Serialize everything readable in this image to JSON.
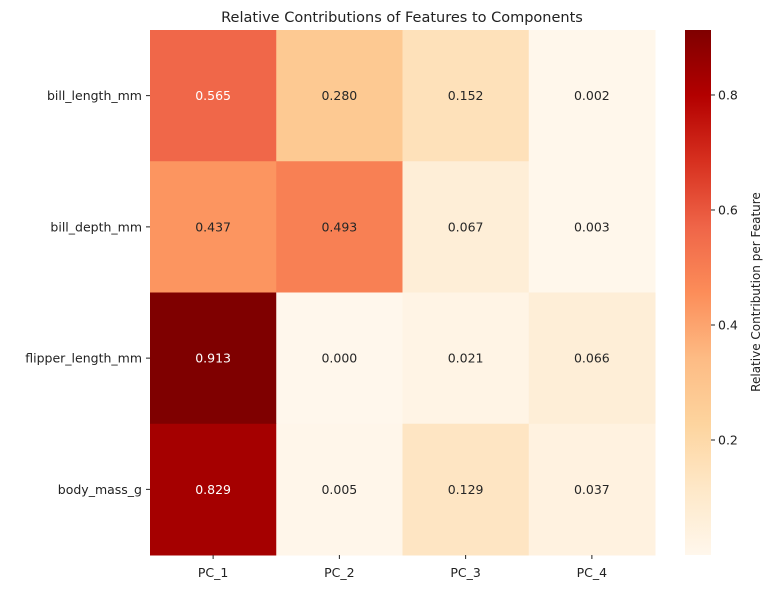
{
  "chart_data": {
    "type": "heatmap",
    "title": "Relative Contributions of Features to Components",
    "xlabel": "",
    "ylabel": "",
    "columns": [
      "PC_1",
      "PC_2",
      "PC_3",
      "PC_4"
    ],
    "rows": [
      "bill_length_mm",
      "bill_depth_mm",
      "flipper_length_mm",
      "body_mass_g"
    ],
    "values": [
      [
        0.565,
        0.28,
        0.152,
        0.002
      ],
      [
        0.437,
        0.493,
        0.067,
        0.003
      ],
      [
        0.913,
        0.0,
        0.021,
        0.066
      ],
      [
        0.829,
        0.005,
        0.129,
        0.037
      ]
    ],
    "annotation_format": "3 decimals",
    "colormap": "OrRd",
    "colormap_stops": [
      "#fff7ec",
      "#fee8c8",
      "#fdd49e",
      "#fdbb84",
      "#fc8d59",
      "#ef6548",
      "#d7301f",
      "#b30000",
      "#7f0000"
    ],
    "vmin": 0.0,
    "vmax": 0.913,
    "colorbar": {
      "label": "Relative Contribution per Feature",
      "ticks": [
        0.2,
        0.4,
        0.6,
        0.8
      ],
      "tick_labels": [
        "0.2",
        "0.4",
        "0.6",
        "0.8"
      ]
    }
  }
}
